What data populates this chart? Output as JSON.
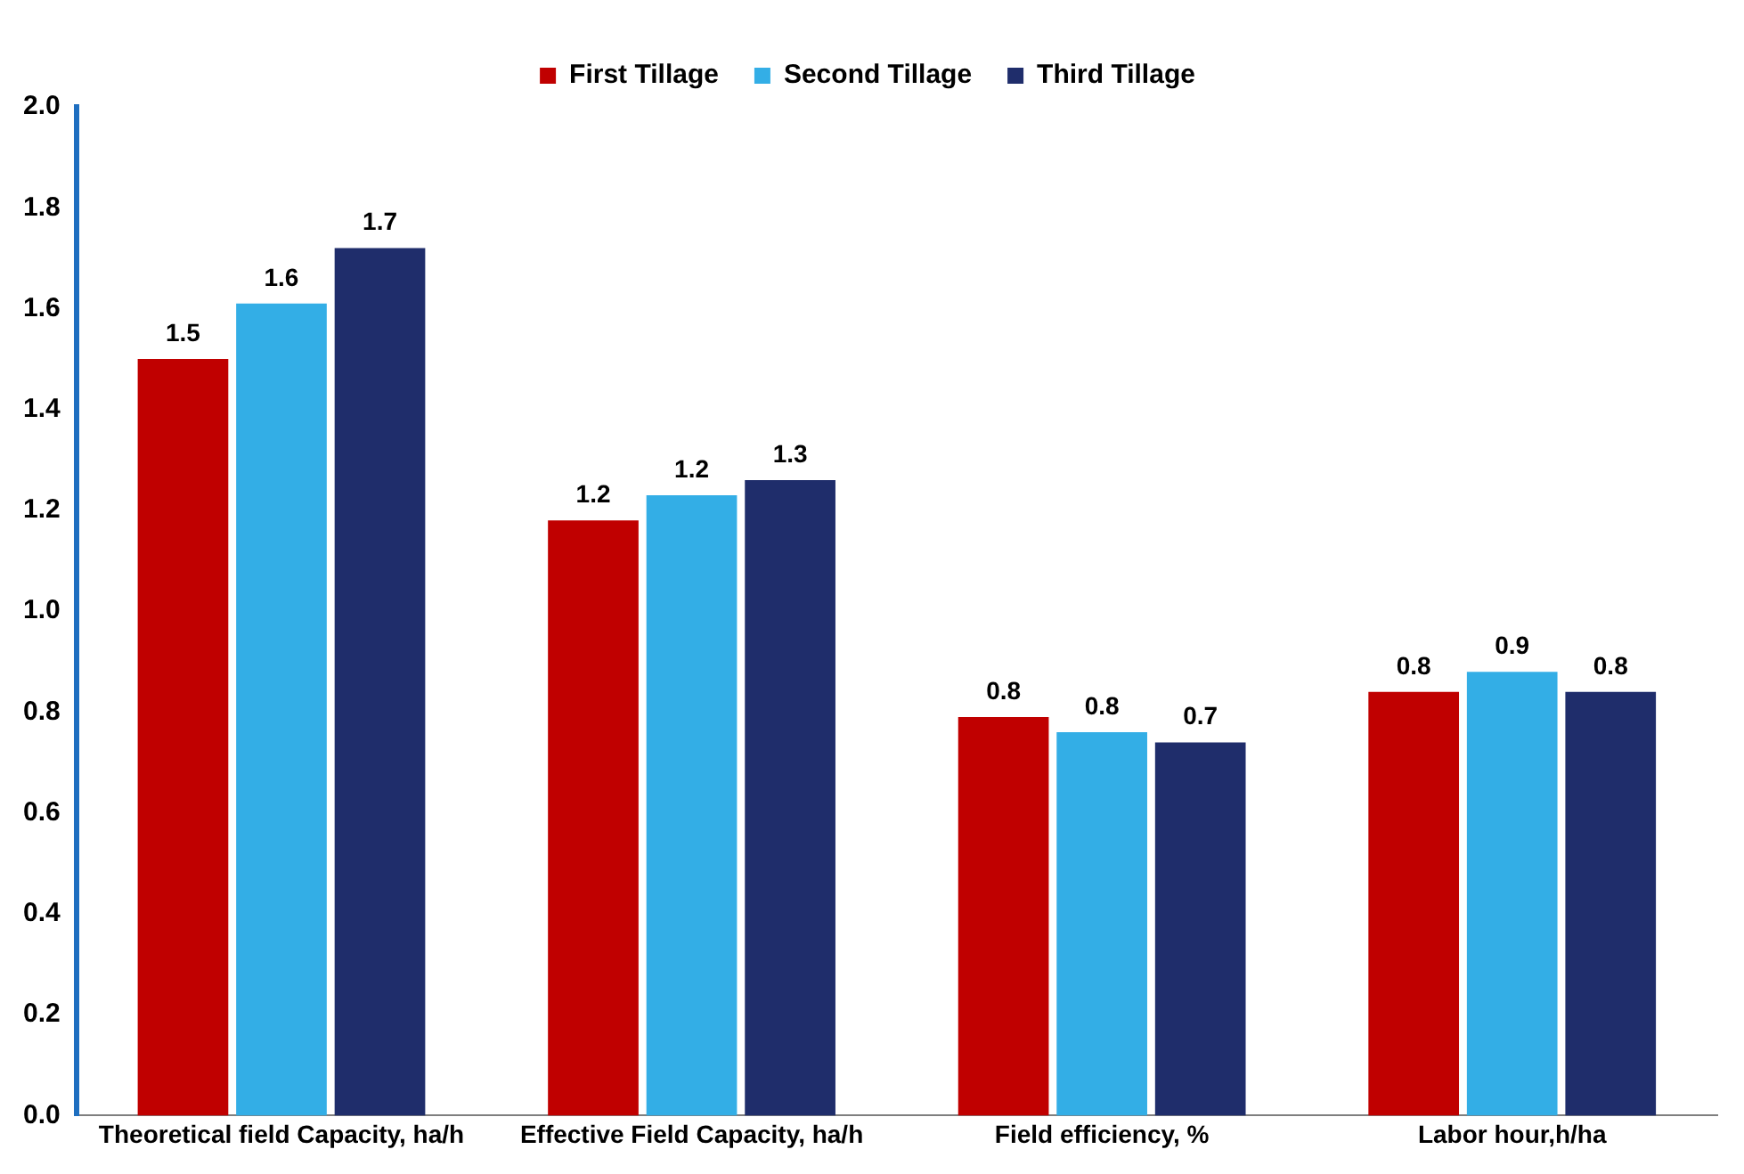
{
  "chart_data": {
    "type": "bar",
    "categories": [
      "Theoretical field Capacity, ha/h",
      "Effective Field Capacity, ha/h",
      "Field efficiency, %",
      "Labor hour,h/ha"
    ],
    "series": [
      {
        "name": "First Tillage",
        "color": "#c00000",
        "values": [
          1.5,
          1.18,
          0.79,
          0.84
        ],
        "value_labels": [
          "1.5",
          "1.2",
          "0.8",
          "0.8"
        ]
      },
      {
        "name": "Second Tillage",
        "color": "#33aee6",
        "values": [
          1.61,
          1.23,
          0.76,
          0.88
        ],
        "value_labels": [
          "1.6",
          "1.2",
          "0.8",
          "0.9"
        ]
      },
      {
        "name": "Third Tillage",
        "color": "#1f2d6b",
        "values": [
          1.72,
          1.26,
          0.74,
          0.84
        ],
        "value_labels": [
          "1.7",
          "1.3",
          "0.7",
          "0.8"
        ]
      }
    ],
    "ylim": [
      0,
      2
    ],
    "yticks": [
      {
        "value": 0,
        "label": "0.0"
      },
      {
        "value": 0.2,
        "label": "0.2"
      },
      {
        "value": 0.4,
        "label": "0.4"
      },
      {
        "value": 0.6,
        "label": "0.6"
      },
      {
        "value": 0.8,
        "label": "0.8"
      },
      {
        "value": 1,
        "label": "1.0"
      },
      {
        "value": 1.2,
        "label": "1.2"
      },
      {
        "value": 1.4,
        "label": "1.4"
      },
      {
        "value": 1.6,
        "label": "1.6"
      },
      {
        "value": 1.8,
        "label": "1.8"
      },
      {
        "value": 2,
        "label": "2.0"
      }
    ],
    "grid": false,
    "legend": "top"
  }
}
